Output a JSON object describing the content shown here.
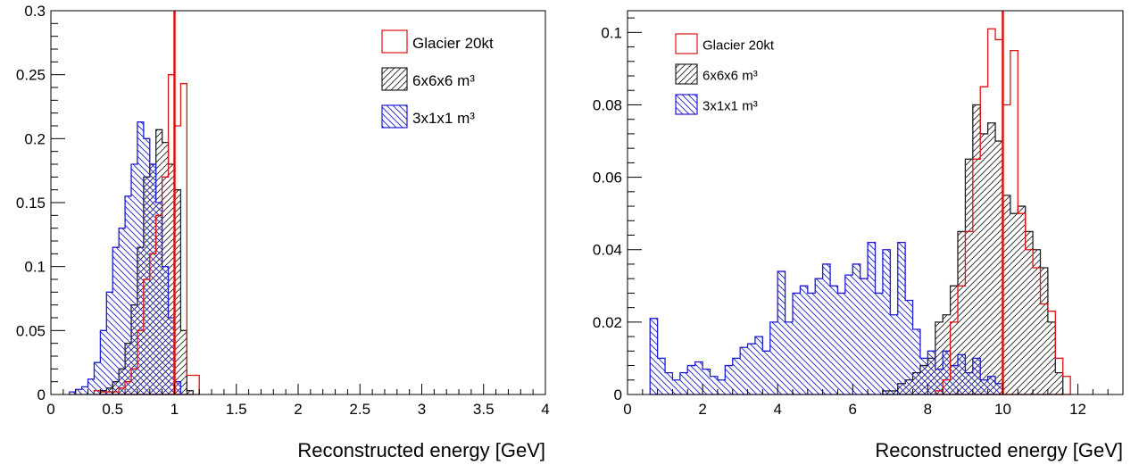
{
  "chart_data": [
    {
      "type": "histogram",
      "title": "",
      "xlabel": "Reconstructed energy [GeV]",
      "ylabel": "",
      "xlim": [
        0,
        4
      ],
      "ylim": [
        0,
        0.3
      ],
      "xticks": [
        0,
        0.5,
        1,
        1.5,
        2,
        2.5,
        3,
        3.5,
        4
      ],
      "xtick_labels": [
        "0",
        "0.5",
        "1",
        "1.5",
        "2",
        "2.5",
        "3",
        "3.5",
        "4"
      ],
      "yticks": [
        0,
        0.05,
        0.1,
        0.15,
        0.2,
        0.25,
        0.3
      ],
      "ytick_labels": [
        "0",
        "0.05",
        "0.1",
        "0.15",
        "0.2",
        "0.25",
        "0.3"
      ],
      "grid": false,
      "legend_position": "top-right",
      "reference_line_x": 1,
      "reference_line_color": "#e11111",
      "series": [
        {
          "name": "Glacier 20kt",
          "color": "#e11111",
          "fill": "none",
          "bin_edges": [
            0.35,
            0.4,
            0.45,
            0.5,
            0.55,
            0.6,
            0.65,
            0.7,
            0.75,
            0.8,
            0.85,
            0.9,
            0.95,
            1.0,
            1.05,
            1.1,
            1.15,
            1.2
          ],
          "values": [
            0.003,
            0.002,
            0.002,
            0.002,
            0.005,
            0.01,
            0.02,
            0.05,
            0.09,
            0.11,
            0.14,
            0.17,
            0.25,
            0.21,
            0.243,
            0.015,
            0.015
          ]
        },
        {
          "name": "6x6x6 m³",
          "color": "#222222",
          "fill": "hatch-diagonal-forward",
          "bin_edges": [
            0.4,
            0.45,
            0.5,
            0.55,
            0.6,
            0.65,
            0.7,
            0.75,
            0.8,
            0.85,
            0.9,
            0.95,
            1.0,
            1.05,
            1.1,
            1.15
          ],
          "values": [
            0.003,
            0.005,
            0.01,
            0.02,
            0.04,
            0.07,
            0.115,
            0.17,
            0.18,
            0.207,
            0.197,
            0.18,
            0.16,
            0.05,
            0.003
          ]
        },
        {
          "name": "3x1x1 m³",
          "color": "#1c1cd6",
          "fill": "hatch-diagonal-back",
          "bin_edges": [
            0.15,
            0.2,
            0.25,
            0.3,
            0.35,
            0.4,
            0.45,
            0.5,
            0.55,
            0.6,
            0.65,
            0.7,
            0.75,
            0.8,
            0.85,
            0.9,
            0.95,
            1.0,
            1.05
          ],
          "values": [
            0.002,
            0.004,
            0.006,
            0.012,
            0.025,
            0.05,
            0.08,
            0.115,
            0.13,
            0.155,
            0.18,
            0.213,
            0.2,
            0.18,
            0.15,
            0.1,
            0.06,
            0.01
          ]
        }
      ]
    },
    {
      "type": "histogram",
      "title": "",
      "xlabel": "Reconstructed energy [GeV]",
      "ylabel": "",
      "xlim": [
        0,
        13.2
      ],
      "ylim": [
        0,
        0.106
      ],
      "xticks": [
        0,
        2,
        4,
        6,
        8,
        10,
        12
      ],
      "xtick_labels": [
        "0",
        "2",
        "4",
        "6",
        "8",
        "10",
        "12"
      ],
      "yticks": [
        0,
        0.02,
        0.04,
        0.06,
        0.08,
        0.1
      ],
      "ytick_labels": [
        "0",
        "0.02",
        "0.04",
        "0.06",
        "0.08",
        "0.1"
      ],
      "grid": false,
      "legend_position": "top-left",
      "reference_line_x": 10,
      "reference_line_color": "#e11111",
      "series": [
        {
          "name": "Glacier 20kt",
          "color": "#e11111",
          "fill": "none",
          "bin_edges": [
            8.2,
            8.4,
            8.6,
            8.8,
            9.0,
            9.2,
            9.4,
            9.6,
            9.8,
            10.0,
            10.2,
            10.4,
            10.6,
            10.8,
            11.0,
            11.2,
            11.4,
            11.6,
            11.8
          ],
          "values": [
            0.001,
            0.004,
            0.02,
            0.03,
            0.045,
            0.065,
            0.085,
            0.101,
            0.098,
            0.08,
            0.095,
            0.05,
            0.04,
            0.035,
            0.025,
            0.023,
            0.01,
            0.005
          ]
        },
        {
          "name": "6x6x6 m³",
          "color": "#222222",
          "fill": "hatch-diagonal-forward",
          "bin_edges": [
            6.8,
            7.0,
            7.2,
            7.4,
            7.6,
            7.8,
            8.0,
            8.2,
            8.4,
            8.6,
            8.8,
            9.0,
            9.2,
            9.4,
            9.6,
            9.8,
            10.0,
            10.2,
            10.4,
            10.6,
            10.8,
            11.0,
            11.2,
            11.4,
            11.6
          ],
          "values": [
            0.001,
            0.001,
            0.003,
            0.004,
            0.006,
            0.008,
            0.01,
            0.02,
            0.022,
            0.03,
            0.045,
            0.065,
            0.08,
            0.072,
            0.075,
            0.07,
            0.055,
            0.05,
            0.052,
            0.045,
            0.04,
            0.035,
            0.02,
            0.006
          ]
        },
        {
          "name": "3x1x1 m³",
          "color": "#1c1cd6",
          "fill": "hatch-diagonal-back",
          "bin_edges": [
            0.6,
            0.8,
            1.0,
            1.2,
            1.4,
            1.6,
            1.8,
            2.0,
            2.2,
            2.4,
            2.6,
            2.8,
            3.0,
            3.2,
            3.4,
            3.6,
            3.8,
            4.0,
            4.2,
            4.4,
            4.6,
            4.8,
            5.0,
            5.2,
            5.4,
            5.6,
            5.8,
            6.0,
            6.2,
            6.4,
            6.6,
            6.8,
            7.0,
            7.2,
            7.4,
            7.6,
            7.8,
            8.0,
            8.2,
            8.4,
            8.6,
            8.8,
            9.0,
            9.2,
            9.4,
            9.6,
            9.8,
            10.0
          ],
          "values": [
            0.021,
            0.01,
            0.006,
            0.004,
            0.006,
            0.008,
            0.009,
            0.007,
            0.005,
            0.004,
            0.008,
            0.01,
            0.013,
            0.014,
            0.016,
            0.012,
            0.02,
            0.034,
            0.02,
            0.028,
            0.03,
            0.028,
            0.032,
            0.036,
            0.03,
            0.028,
            0.033,
            0.036,
            0.032,
            0.042,
            0.028,
            0.04,
            0.022,
            0.042,
            0.026,
            0.018,
            0.01,
            0.012,
            0.007,
            0.012,
            0.008,
            0.011,
            0.006,
            0.01,
            0.004,
            0.005,
            0.003
          ]
        }
      ]
    }
  ]
}
